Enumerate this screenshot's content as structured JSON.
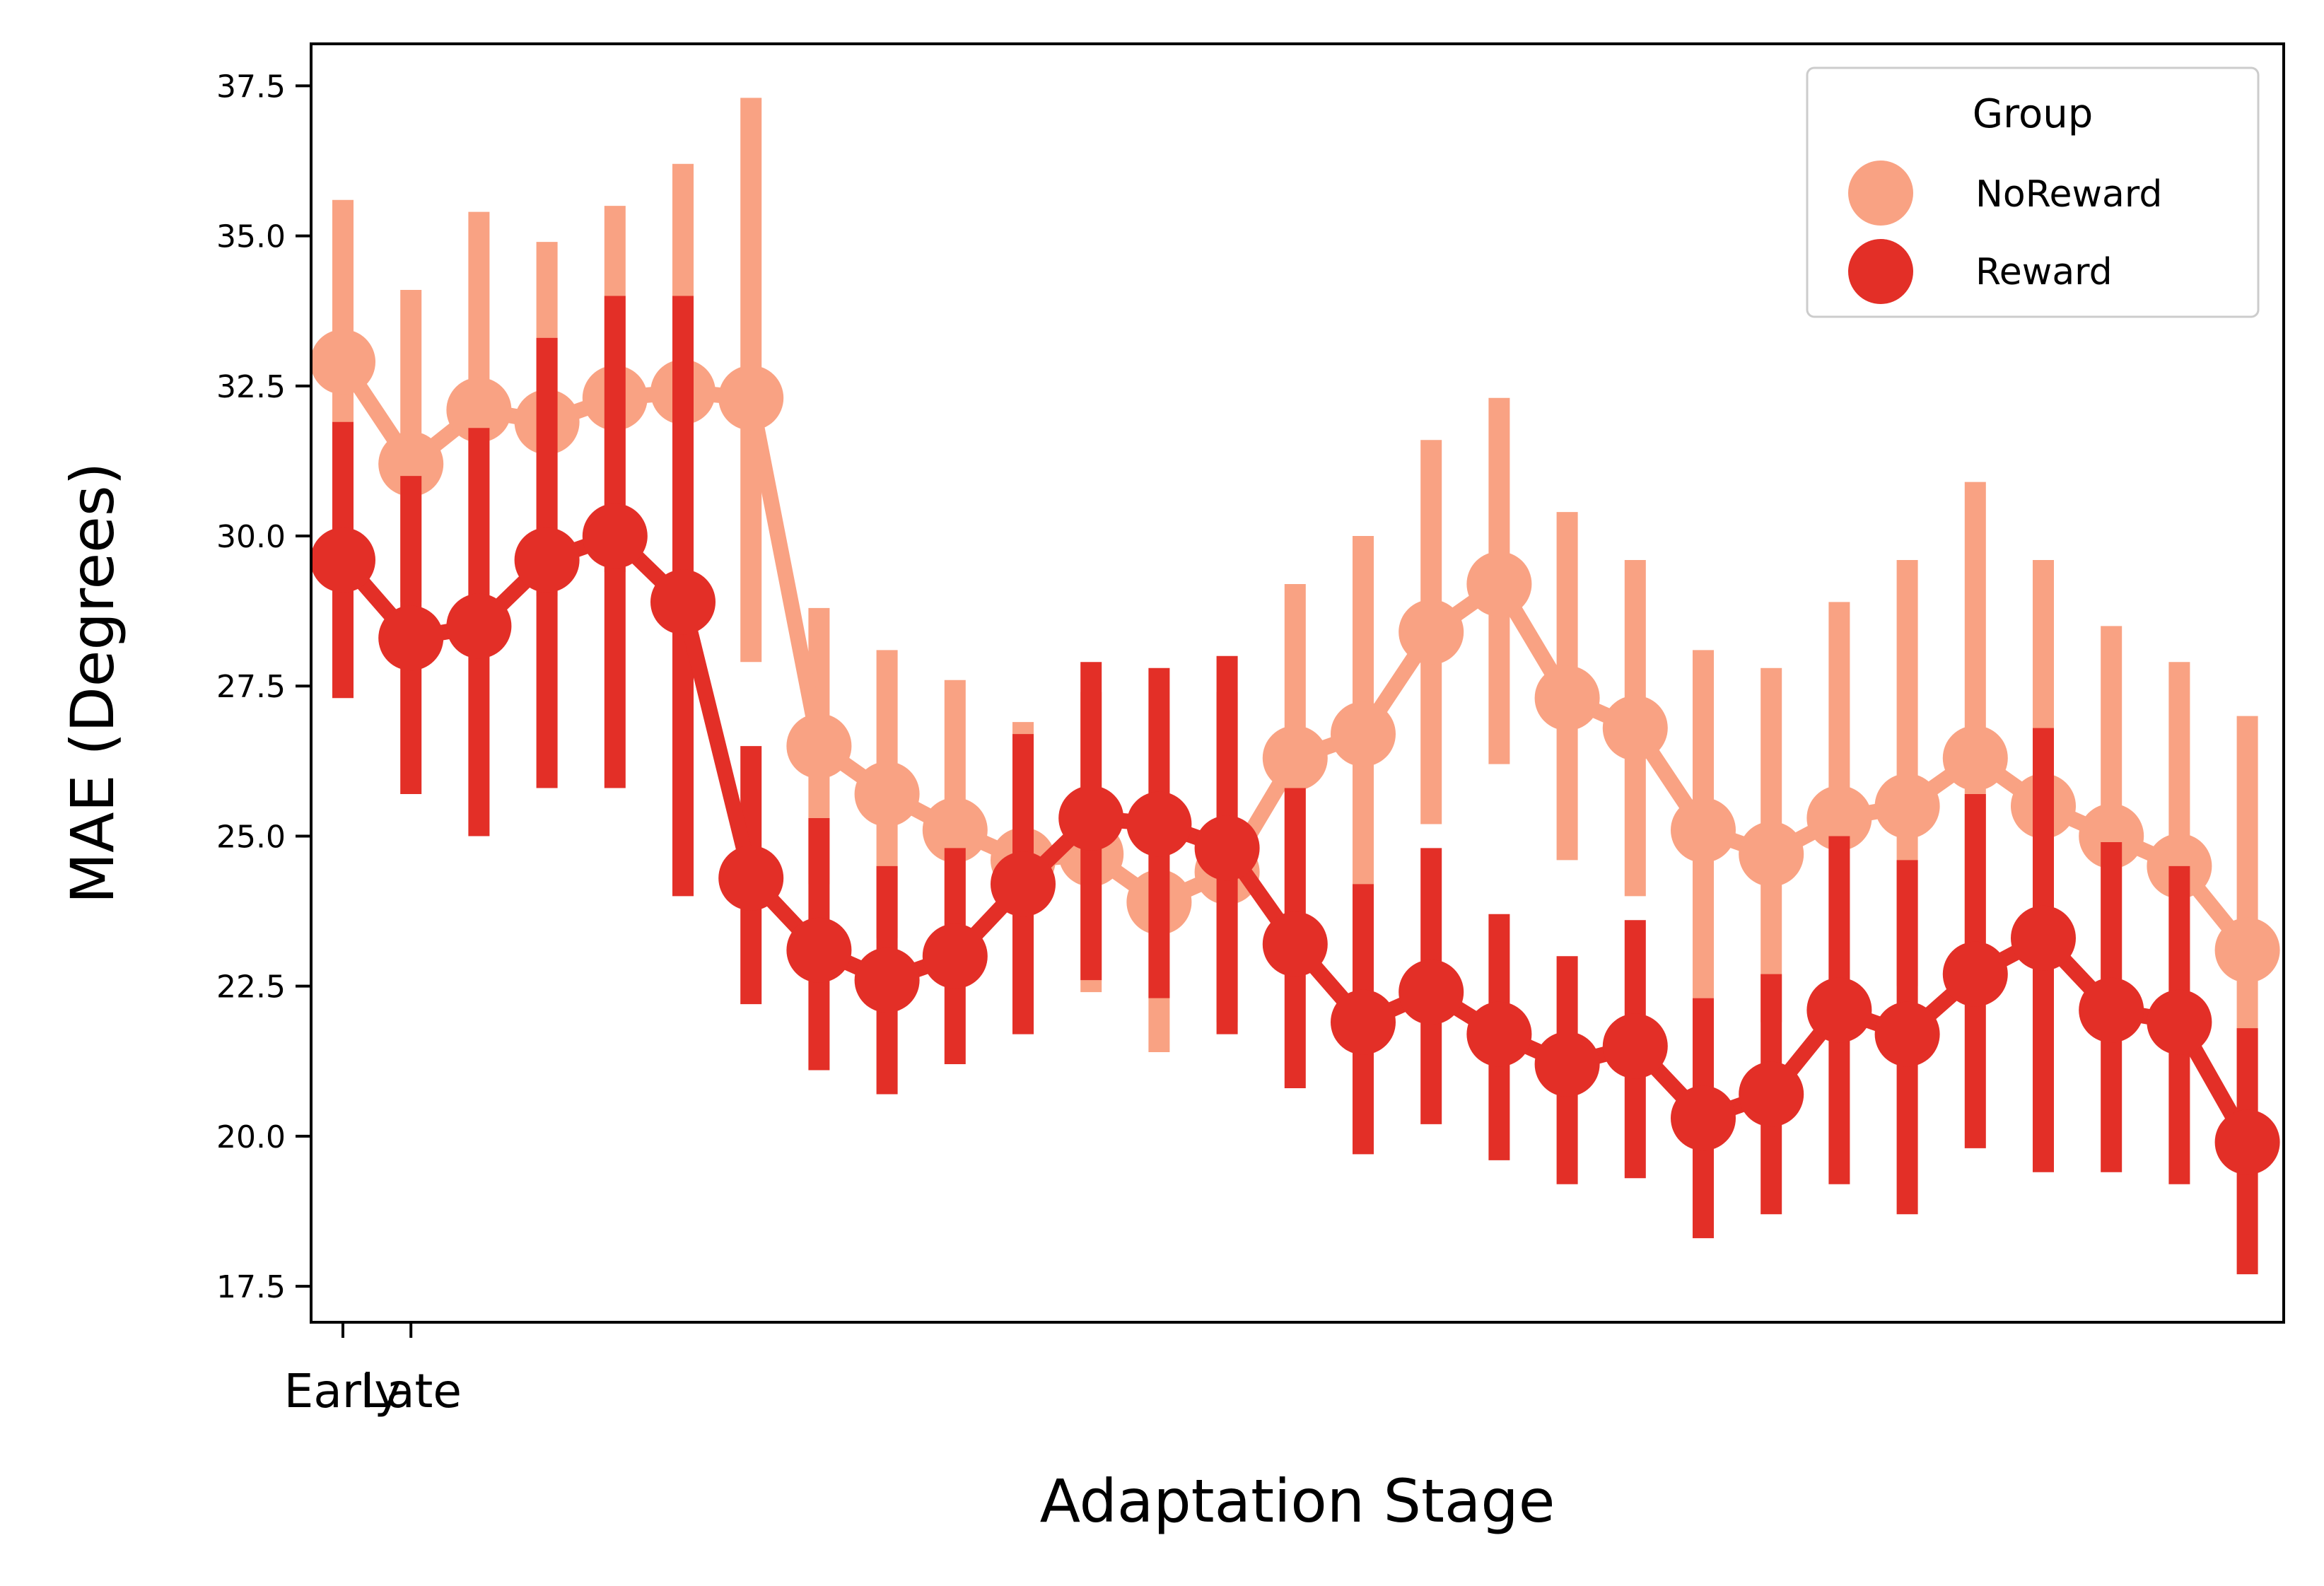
{
  "chart_data": {
    "type": "line",
    "xlabel": "Adaptation Stage",
    "ylabel": "MAE (Degrees)",
    "ylim": [
      16.9,
      38.2
    ],
    "yticks": [
      17.5,
      20.0,
      22.5,
      25.0,
      27.5,
      30.0,
      32.5,
      35.0,
      37.5
    ],
    "x_tick_labels": [
      "Early",
      "Late"
    ],
    "x": [
      1,
      2,
      3,
      4,
      5,
      6,
      7,
      8,
      9,
      10,
      11,
      12,
      13,
      14,
      15,
      16,
      17,
      18,
      19,
      20,
      21,
      22,
      23,
      24,
      25,
      26,
      27,
      28,
      29
    ],
    "error_bars": "vertical interval per point",
    "legend": {
      "title": "Group",
      "placement": "top-right"
    },
    "series": [
      {
        "name": "NoReward",
        "color": "#f9a283",
        "values": [
          32.9,
          31.2,
          32.1,
          31.9,
          32.3,
          32.4,
          32.3,
          26.5,
          25.7,
          25.1,
          24.6,
          24.7,
          23.9,
          24.4,
          26.3,
          26.7,
          28.4,
          29.2,
          27.3,
          26.8,
          25.1,
          24.7,
          25.3,
          25.5,
          26.3,
          25.5,
          25.0,
          24.5,
          23.1
        ],
        "lower": [
          30.4,
          28.9,
          29.0,
          29.0,
          29.4,
          28.8,
          27.9,
          24.2,
          23.3,
          22.7,
          22.4,
          22.4,
          21.4,
          21.9,
          23.6,
          23.6,
          25.2,
          26.2,
          24.6,
          24.0,
          22.3,
          21.9,
          22.2,
          22.5,
          23.0,
          22.3,
          22.0,
          21.4,
          20.2
        ],
        "upper": [
          35.6,
          34.1,
          35.4,
          34.9,
          35.5,
          36.2,
          37.3,
          28.8,
          28.1,
          27.6,
          26.9,
          27.4,
          27.1,
          27.4,
          29.2,
          30.0,
          31.6,
          32.3,
          30.4,
          29.6,
          28.1,
          27.8,
          28.9,
          29.6,
          30.9,
          29.6,
          28.5,
          27.9,
          27.0
        ]
      },
      {
        "name": "Reward",
        "color": "#e32f27",
        "values": [
          29.6,
          28.3,
          28.5,
          29.6,
          30.0,
          28.9,
          24.3,
          23.1,
          22.6,
          23.0,
          24.2,
          25.3,
          25.2,
          24.8,
          23.2,
          21.9,
          22.4,
          21.7,
          21.2,
          21.5,
          20.3,
          20.7,
          22.1,
          21.7,
          22.7,
          23.3,
          22.1,
          21.9,
          19.9
        ],
        "lower": [
          27.3,
          25.7,
          25.0,
          25.8,
          25.8,
          24.0,
          22.2,
          21.1,
          20.7,
          21.2,
          21.7,
          22.6,
          22.3,
          21.7,
          20.8,
          19.7,
          20.2,
          19.6,
          19.2,
          19.3,
          18.3,
          18.7,
          19.2,
          18.7,
          19.8,
          19.4,
          19.4,
          19.2,
          17.7
        ],
        "upper": [
          31.9,
          31.0,
          31.8,
          33.3,
          34.0,
          34.0,
          26.5,
          25.3,
          24.5,
          24.8,
          26.7,
          27.9,
          27.8,
          28.0,
          25.8,
          24.2,
          24.8,
          23.7,
          23.0,
          23.6,
          22.3,
          22.7,
          25.0,
          24.6,
          25.7,
          26.8,
          24.9,
          24.5,
          21.8
        ]
      }
    ]
  }
}
